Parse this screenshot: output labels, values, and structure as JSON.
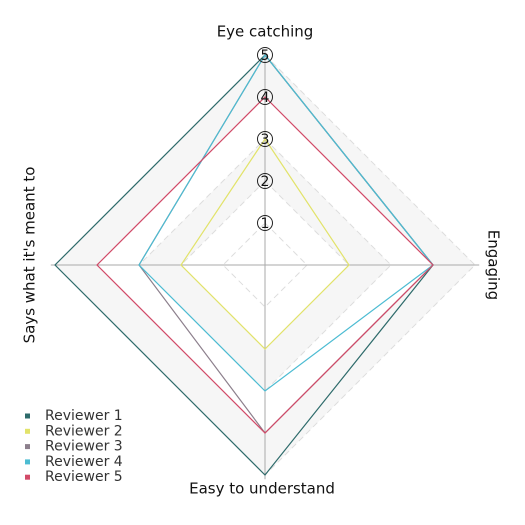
{
  "chart_data": {
    "type": "radar",
    "categories": [
      "Eye catching",
      "Engaging",
      "Easy to understand",
      "Says what it's meant to"
    ],
    "rlim": [
      0,
      5
    ],
    "rticks": [
      1,
      2,
      3,
      4,
      5
    ],
    "series": [
      {
        "name": "Reviewer 1",
        "color": "#2e6b6b",
        "values": [
          5,
          4,
          5,
          5
        ]
      },
      {
        "name": "Reviewer 2",
        "color": "#e2e36a",
        "values": [
          3,
          2,
          2,
          2
        ]
      },
      {
        "name": "Reviewer 3",
        "color": "#8c7f8c",
        "values": [
          5,
          4,
          4,
          3
        ]
      },
      {
        "name": "Reviewer 4",
        "color": "#4cbcd2",
        "values": [
          5,
          4,
          3,
          3
        ]
      },
      {
        "name": "Reviewer 5",
        "color": "#d24a68",
        "values": [
          4,
          4,
          4,
          4
        ]
      }
    ],
    "legend": "lower left"
  }
}
